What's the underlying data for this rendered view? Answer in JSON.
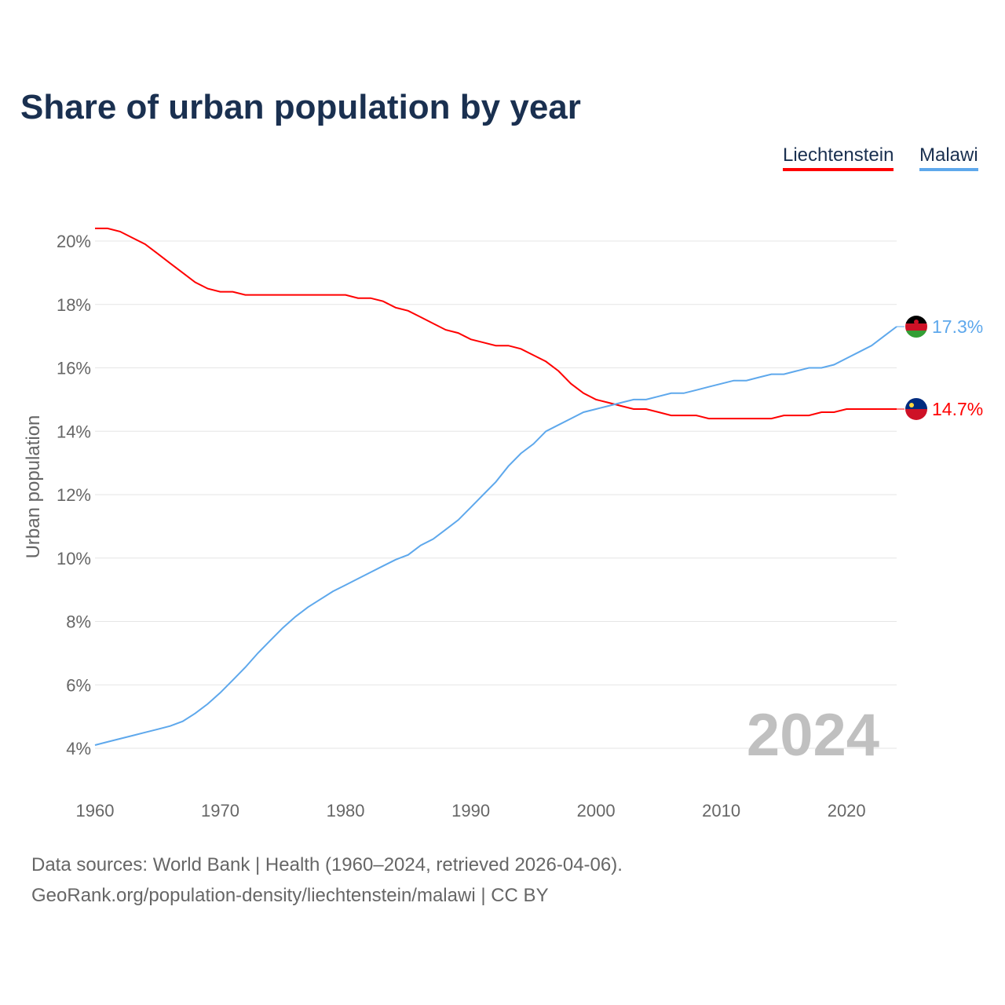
{
  "chart_data": {
    "type": "line",
    "title": "Share of urban population by year",
    "xlabel": "",
    "ylabel": "Urban population",
    "xlim": [
      1960,
      2024
    ],
    "ylim": [
      3,
      21
    ],
    "x_ticks": [
      1960,
      1970,
      1980,
      1990,
      2000,
      2010,
      2020
    ],
    "y_ticks": [
      4,
      6,
      8,
      10,
      12,
      14,
      16,
      18,
      20
    ],
    "y_tick_labels": [
      "4%",
      "6%",
      "8%",
      "10%",
      "12%",
      "14%",
      "16%",
      "18%",
      "20%"
    ],
    "grid": true,
    "legend_position": "top-right",
    "year_label": "2024",
    "x": [
      1960,
      1961,
      1962,
      1963,
      1964,
      1965,
      1966,
      1967,
      1968,
      1969,
      1970,
      1971,
      1972,
      1973,
      1974,
      1975,
      1976,
      1977,
      1978,
      1979,
      1980,
      1981,
      1982,
      1983,
      1984,
      1985,
      1986,
      1987,
      1988,
      1989,
      1990,
      1991,
      1992,
      1993,
      1994,
      1995,
      1996,
      1997,
      1998,
      1999,
      2000,
      2001,
      2002,
      2003,
      2004,
      2005,
      2006,
      2007,
      2008,
      2009,
      2010,
      2011,
      2012,
      2013,
      2014,
      2015,
      2016,
      2017,
      2018,
      2019,
      2020,
      2021,
      2022,
      2023,
      2024
    ],
    "series": [
      {
        "name": "Liechtenstein",
        "color": "#ff0000",
        "end_label": "14.7%",
        "values": [
          20.4,
          20.4,
          20.3,
          20.1,
          19.9,
          19.6,
          19.3,
          19.0,
          18.7,
          18.5,
          18.4,
          18.4,
          18.3,
          18.3,
          18.3,
          18.3,
          18.3,
          18.3,
          18.3,
          18.3,
          18.3,
          18.2,
          18.2,
          18.1,
          17.9,
          17.8,
          17.6,
          17.4,
          17.2,
          17.1,
          16.9,
          16.8,
          16.7,
          16.7,
          16.6,
          16.4,
          16.2,
          15.9,
          15.5,
          15.2,
          15.0,
          14.9,
          14.8,
          14.7,
          14.7,
          14.6,
          14.5,
          14.5,
          14.5,
          14.4,
          14.4,
          14.4,
          14.4,
          14.4,
          14.4,
          14.5,
          14.5,
          14.5,
          14.6,
          14.6,
          14.7,
          14.7,
          14.7,
          14.7,
          14.7
        ]
      },
      {
        "name": "Malawi",
        "color": "#5ea8ec",
        "end_label": "17.3%",
        "values": [
          4.1,
          4.2,
          4.3,
          4.4,
          4.5,
          4.6,
          4.7,
          4.85,
          5.1,
          5.4,
          5.75,
          6.15,
          6.55,
          7.0,
          7.4,
          7.8,
          8.15,
          8.45,
          8.7,
          8.95,
          9.15,
          9.35,
          9.55,
          9.75,
          9.95,
          10.1,
          10.4,
          10.6,
          10.9,
          11.2,
          11.6,
          12.0,
          12.4,
          12.9,
          13.3,
          13.6,
          14.0,
          14.2,
          14.4,
          14.6,
          14.7,
          14.8,
          14.9,
          15.0,
          15.0,
          15.1,
          15.2,
          15.2,
          15.3,
          15.4,
          15.5,
          15.6,
          15.6,
          15.7,
          15.8,
          15.8,
          15.9,
          16.0,
          16.0,
          16.1,
          16.3,
          16.5,
          16.7,
          17.0,
          17.3
        ]
      }
    ]
  },
  "footer": {
    "line1": "Data sources: World Bank | Health (1960–2024, retrieved 2026-04-06).",
    "line2": "GeoRank.org/population-density/liechtenstein/malawi | CC BY"
  }
}
